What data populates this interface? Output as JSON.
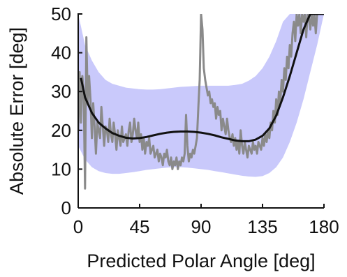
{
  "chart_data": {
    "type": "line",
    "title": "",
    "xlabel": "Predicted Polar Angle [deg]",
    "ylabel": "Absolute Error [deg]",
    "xlim": [
      0,
      180
    ],
    "ylim": [
      0,
      50
    ],
    "xticks": [
      0,
      45,
      90,
      135,
      180
    ],
    "yticks": [
      0,
      10,
      20,
      30,
      40,
      50
    ],
    "grid": false,
    "legend": "none",
    "colors": {
      "band": "#c9c9fb",
      "fit": "#111111",
      "empirical": "#8a8a8a",
      "axis": "#111111"
    },
    "series": [
      {
        "kind": "band",
        "x": [
          0,
          5,
          10,
          15,
          20,
          25,
          30,
          35,
          40,
          45,
          50,
          55,
          60,
          65,
          70,
          75,
          80,
          85,
          90,
          95,
          100,
          105,
          110,
          115,
          120,
          125,
          130,
          135,
          140,
          145,
          150,
          155,
          160,
          165,
          170,
          175,
          180
        ],
        "upper": [
          50,
          42,
          38,
          35,
          33,
          32,
          31.5,
          31,
          30.8,
          30.6,
          30.5,
          30.5,
          30.6,
          30.8,
          31,
          31.2,
          31.3,
          31.4,
          31.5,
          31.5,
          31.5,
          31.5,
          31.5,
          31.7,
          32,
          32.8,
          34,
          36,
          39,
          43,
          48,
          50,
          50,
          50,
          50,
          50,
          50
        ],
        "lower": [
          16,
          12.5,
          10.5,
          9.5,
          9,
          8.8,
          8.8,
          9,
          9.2,
          9.5,
          9.8,
          10,
          10.2,
          10.4,
          10.5,
          10.5,
          10.4,
          10.2,
          10,
          9.8,
          9.5,
          9.2,
          8.9,
          8.6,
          8.3,
          8.1,
          8,
          8.2,
          9,
          10.5,
          13,
          17,
          22,
          28,
          35,
          42,
          50
        ]
      },
      {
        "kind": "fit",
        "x": [
          2,
          5,
          10,
          15,
          20,
          25,
          30,
          35,
          40,
          45,
          50,
          55,
          60,
          65,
          70,
          75,
          80,
          85,
          90,
          95,
          100,
          105,
          110,
          115,
          120,
          125,
          130,
          135,
          140,
          145,
          150,
          155,
          160,
          165,
          170,
          175,
          180
        ],
        "y": [
          33.5,
          28.5,
          24.5,
          22,
          20.5,
          19.3,
          18.6,
          18.1,
          17.9,
          18,
          18.3,
          18.7,
          19.1,
          19.4,
          19.6,
          19.7,
          19.7,
          19.6,
          19.4,
          19.1,
          18.7,
          18.2,
          17.8,
          17.4,
          17.2,
          17.2,
          17.6,
          18.6,
          20.5,
          23.8,
          28.5,
          34,
          40,
          46,
          50,
          50,
          50
        ]
      },
      {
        "kind": "empirical",
        "x": [
          0,
          1,
          2,
          3,
          4,
          5,
          6,
          7,
          8,
          9,
          10,
          11,
          12,
          13,
          14,
          15,
          16,
          17,
          18,
          19,
          20,
          21,
          22,
          23,
          24,
          25,
          26,
          27,
          28,
          29,
          30,
          31,
          32,
          33,
          34,
          35,
          36,
          37,
          38,
          39,
          40,
          41,
          42,
          43,
          44,
          45,
          46,
          47,
          48,
          49,
          50,
          51,
          52,
          53,
          54,
          55,
          56,
          57,
          58,
          59,
          60,
          61,
          62,
          63,
          64,
          65,
          66,
          67,
          68,
          69,
          70,
          71,
          72,
          73,
          74,
          75,
          76,
          77,
          78,
          79,
          80,
          81,
          82,
          83,
          84,
          85,
          86,
          87,
          88,
          89,
          90,
          91,
          92,
          93,
          94,
          95,
          96,
          97,
          98,
          99,
          100,
          101,
          102,
          103,
          104,
          105,
          106,
          107,
          108,
          109,
          110,
          111,
          112,
          113,
          114,
          115,
          116,
          117,
          118,
          119,
          120,
          121,
          122,
          123,
          124,
          125,
          126,
          127,
          128,
          129,
          130,
          131,
          132,
          133,
          134,
          135,
          136,
          137,
          138,
          139,
          140,
          141,
          142,
          143,
          144,
          145,
          146,
          147,
          148,
          149,
          150,
          151,
          152,
          153,
          154,
          155,
          156,
          157,
          158,
          159,
          160,
          161,
          162,
          163,
          164,
          165,
          166,
          167,
          168,
          169,
          170,
          171,
          172,
          173,
          174,
          175,
          176
        ],
        "y": [
          20,
          35,
          22,
          34,
          30,
          5,
          44,
          27,
          34,
          28,
          18,
          27,
          21,
          14,
          22,
          20,
          18,
          26,
          21,
          16,
          21,
          20,
          17,
          23,
          19,
          17,
          22,
          19,
          15,
          20,
          18,
          16,
          21,
          17,
          18,
          19,
          16,
          20,
          22,
          17,
          19,
          23,
          20,
          18,
          22,
          17,
          19,
          15,
          18,
          14,
          17,
          16,
          18,
          14,
          15,
          16,
          13,
          14,
          15,
          12,
          14,
          13,
          11,
          14,
          13,
          15,
          12,
          11,
          13,
          10,
          12,
          11,
          13,
          10,
          12,
          11,
          13,
          12,
          14,
          24,
          16,
          12,
          14,
          13,
          15,
          14,
          16,
          18,
          26,
          33,
          50,
          46,
          36,
          33,
          31,
          29,
          30,
          27,
          28,
          26,
          27,
          23,
          26,
          24,
          25,
          20,
          23,
          21,
          19,
          23,
          20,
          18,
          17,
          19,
          16,
          18,
          15,
          17,
          14,
          20,
          16,
          14,
          17,
          15,
          13,
          16,
          15,
          14,
          17,
          15,
          16,
          14,
          17,
          16,
          15,
          18,
          16,
          19,
          17,
          20,
          18,
          22,
          20,
          25,
          22,
          28,
          24,
          30,
          27,
          33,
          30,
          36,
          33,
          39,
          36,
          42,
          39,
          45,
          48,
          43,
          50,
          47,
          50,
          45,
          50,
          48,
          50,
          44,
          50,
          49,
          46,
          50,
          47,
          50,
          45,
          50,
          50
        ]
      }
    ]
  }
}
